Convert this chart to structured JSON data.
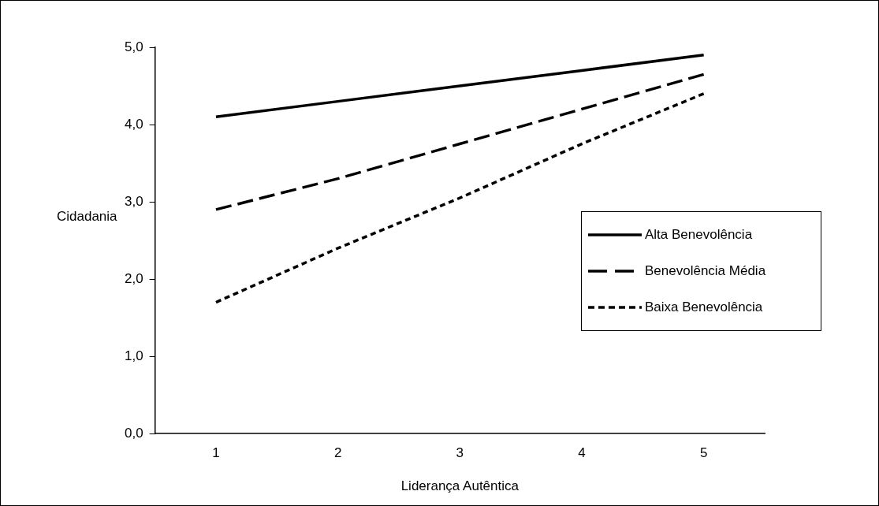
{
  "chart_data": {
    "type": "line",
    "xlabel": "Liderança Autêntica",
    "ylabel": "Cidadania",
    "categories": [
      "1",
      "2",
      "3",
      "4",
      "5"
    ],
    "ylim": [
      0,
      5
    ],
    "yticks": [
      {
        "value": 0,
        "label": "0,0"
      },
      {
        "value": 1,
        "label": "1,0"
      },
      {
        "value": 2,
        "label": "2,0"
      },
      {
        "value": 3,
        "label": "3,0"
      },
      {
        "value": 4,
        "label": "4,0"
      },
      {
        "value": 5,
        "label": "5,0"
      }
    ],
    "grid": false,
    "legend": "right",
    "marker": "none",
    "series": [
      {
        "name": "Alta Benevolência",
        "color": "#000000",
        "line_style": "solid",
        "values": [
          4.1,
          4.3,
          4.5,
          4.7,
          4.9
        ]
      },
      {
        "name": "Benevolência Média",
        "color": "#000000",
        "line_style": "dashed",
        "values": [
          2.9,
          3.3,
          3.75,
          4.2,
          4.65
        ]
      },
      {
        "name": "Baixa Benevolência",
        "color": "#000000",
        "line_style": "dotted",
        "values": [
          1.7,
          2.4,
          3.05,
          3.75,
          4.4
        ]
      }
    ]
  }
}
